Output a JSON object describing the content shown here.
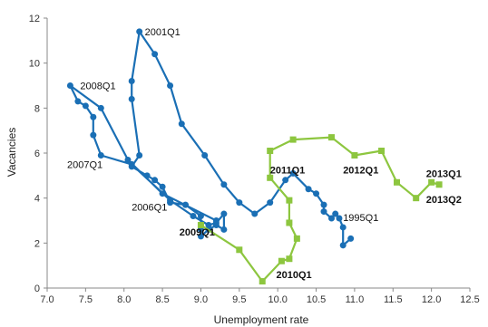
{
  "chart_data": {
    "type": "scatter",
    "title": "",
    "xlabel": "Unemployment rate",
    "ylabel": "Vacancies",
    "xlim": [
      7.0,
      12.5
    ],
    "ylim": [
      0,
      12
    ],
    "x_ticks": [
      "7.0",
      "7.5",
      "8.0",
      "8.5",
      "9.0",
      "9.5",
      "10.0",
      "10.5",
      "11.0",
      "11.5",
      "12.0",
      "12.5"
    ],
    "y_ticks": [
      "0",
      "2",
      "4",
      "6",
      "8",
      "10",
      "12"
    ],
    "grid": false,
    "legend": "none",
    "series": [
      {
        "color": "#1a6fb5",
        "marker": "circle",
        "points": [
          [
            10.95,
            2.2
          ],
          [
            10.85,
            1.9
          ],
          [
            10.85,
            2.7
          ],
          [
            10.8,
            3.1
          ],
          [
            10.75,
            3.3
          ],
          [
            10.7,
            3.1
          ],
          [
            10.6,
            3.4
          ],
          [
            10.6,
            3.7
          ],
          [
            10.5,
            4.2
          ],
          [
            10.4,
            4.4
          ],
          [
            10.2,
            5.1
          ],
          [
            10.1,
            4.8
          ],
          [
            9.9,
            3.8
          ],
          [
            9.7,
            3.3
          ],
          [
            9.5,
            3.8
          ],
          [
            9.3,
            4.6
          ],
          [
            9.05,
            5.9
          ],
          [
            8.75,
            7.3
          ],
          [
            8.6,
            9.0
          ],
          [
            8.4,
            10.4
          ],
          [
            8.2,
            11.4
          ],
          [
            8.1,
            9.2
          ],
          [
            8.1,
            8.4
          ],
          [
            8.2,
            5.9
          ],
          [
            8.1,
            5.4
          ],
          [
            8.3,
            5.0
          ],
          [
            8.4,
            4.8
          ],
          [
            8.5,
            4.5
          ],
          [
            8.6,
            3.8
          ],
          [
            8.8,
            3.7
          ],
          [
            9.0,
            3.2
          ],
          [
            9.0,
            2.6
          ],
          [
            9.0,
            2.3
          ],
          [
            9.1,
            2.6
          ],
          [
            9.2,
            2.8
          ],
          [
            9.3,
            2.6
          ],
          [
            9.3,
            3.3
          ],
          [
            9.2,
            2.9
          ],
          [
            9.1,
            2.8
          ],
          [
            8.9,
            3.2
          ],
          [
            8.6,
            3.9
          ],
          [
            8.1,
            5.5
          ],
          [
            7.7,
            5.9
          ],
          [
            7.6,
            6.8
          ],
          [
            7.6,
            7.6
          ],
          [
            7.5,
            8.1
          ],
          [
            7.4,
            8.3
          ],
          [
            7.3,
            9.0
          ],
          [
            7.7,
            8.0
          ],
          [
            8.05,
            5.7
          ],
          [
            8.5,
            4.2
          ],
          [
            9.2,
            3.0
          ]
        ]
      },
      {
        "color": "#8dc63f",
        "marker": "square",
        "points": [
          [
            9.0,
            2.8
          ],
          [
            9.5,
            1.7
          ],
          [
            9.8,
            0.3
          ],
          [
            10.05,
            1.2
          ],
          [
            10.15,
            1.3
          ],
          [
            10.25,
            2.2
          ],
          [
            10.15,
            2.9
          ],
          [
            10.15,
            3.9
          ],
          [
            9.9,
            4.9
          ],
          [
            9.9,
            6.1
          ],
          [
            10.2,
            6.6
          ],
          [
            10.7,
            6.7
          ],
          [
            11.0,
            5.9
          ],
          [
            11.35,
            6.1
          ],
          [
            11.55,
            4.7
          ],
          [
            11.8,
            4.0
          ],
          [
            12.0,
            4.7
          ],
          [
            12.1,
            4.6
          ]
        ]
      }
    ],
    "annotations": [
      {
        "text": "2001Q1",
        "x": 8.27,
        "y": 11.4,
        "bold": false,
        "anchor": "start"
      },
      {
        "text": "2008Q1",
        "x": 7.43,
        "y": 9.0,
        "bold": false,
        "anchor": "start"
      },
      {
        "text": "2007Q1",
        "x": 7.26,
        "y": 5.5,
        "bold": false,
        "anchor": "start"
      },
      {
        "text": "2006Q1",
        "x": 8.1,
        "y": 3.6,
        "bold": false,
        "anchor": "start"
      },
      {
        "text": "2009Q1",
        "x": 8.72,
        "y": 2.5,
        "bold": true,
        "anchor": "start"
      },
      {
        "text": "2011Q1",
        "x": 9.9,
        "y": 5.25,
        "bold": true,
        "anchor": "start"
      },
      {
        "text": "2012Q1",
        "x": 10.85,
        "y": 5.25,
        "bold": true,
        "anchor": "start"
      },
      {
        "text": "1995Q1",
        "x": 10.85,
        "y": 3.15,
        "bold": false,
        "anchor": "start"
      },
      {
        "text": "2010Q1",
        "x": 9.98,
        "y": 0.6,
        "bold": true,
        "anchor": "start"
      },
      {
        "text": "2013Q1",
        "x": 11.93,
        "y": 5.1,
        "bold": true,
        "anchor": "start"
      },
      {
        "text": "2013Q2",
        "x": 11.93,
        "y": 3.95,
        "bold": true,
        "anchor": "start"
      }
    ]
  }
}
